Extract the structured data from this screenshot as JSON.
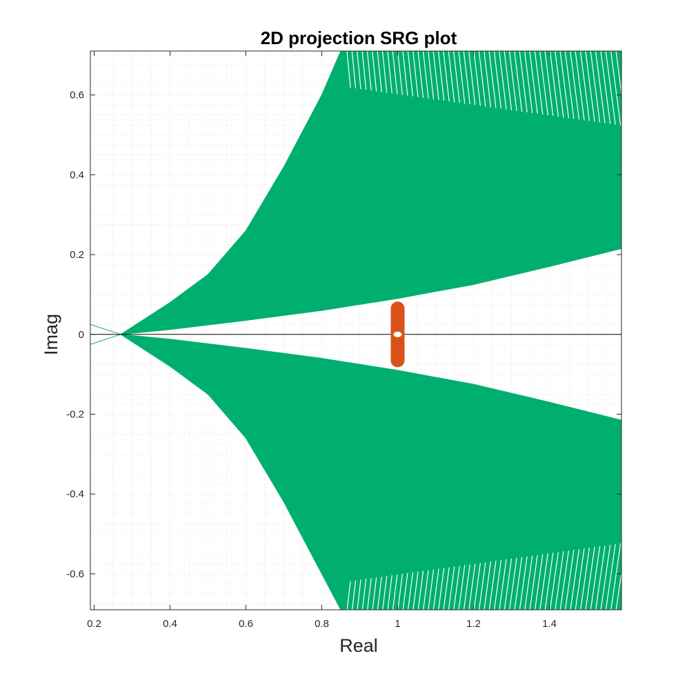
{
  "chart_data": {
    "type": "line",
    "title": "2D projection SRG plot",
    "xlabel": "Real",
    "ylabel": "Imag",
    "xlim": [
      0.19,
      1.59
    ],
    "ylim": [
      -0.69,
      0.71
    ],
    "x_ticks": [
      0.2,
      0.4,
      0.6,
      0.8,
      1,
      1.2,
      1.4
    ],
    "x_tick_labels": [
      "0.2",
      "0.4",
      "0.6",
      "0.8",
      "1",
      "1.2",
      "1.4"
    ],
    "y_ticks": [
      -0.6,
      -0.4,
      -0.2,
      0,
      0.2,
      0.4,
      0.6
    ],
    "y_tick_labels": [
      "-0.6",
      "-0.4",
      "-0.2",
      "0",
      "0.2",
      "0.4",
      "0.6"
    ],
    "grid": "minor-dotted",
    "series": [
      {
        "color": "#00af6f",
        "region": "upper-fan",
        "x_start": 0.19,
        "inner_boundary": {
          "x": [
            0.19,
            0.27,
            0.4,
            0.6,
            0.8,
            1.0,
            1.2,
            1.4,
            1.59
          ],
          "y": [
            0.025,
            0.0,
            0.012,
            0.035,
            0.06,
            0.09,
            0.125,
            0.17,
            0.215
          ]
        },
        "outer_boundary": {
          "x": [
            0.19,
            0.27,
            0.4,
            0.5,
            0.6,
            0.7,
            0.8,
            0.85
          ],
          "y": [
            0.025,
            0.0,
            0.08,
            0.15,
            0.26,
            0.42,
            0.6,
            0.71
          ]
        },
        "fan_end_x": 0.855,
        "fan_end_y": 0.71,
        "fan_right_edge_y": [
          0.215,
          0.71
        ]
      },
      {
        "color": "#00af6f",
        "region": "lower-fan",
        "x_start": 0.19,
        "inner_boundary": {
          "x": [
            0.19,
            0.27,
            0.4,
            0.6,
            0.8,
            1.0,
            1.2,
            1.4,
            1.59
          ],
          "y": [
            -0.025,
            0.0,
            -0.012,
            -0.035,
            -0.06,
            -0.09,
            -0.125,
            -0.17,
            -0.215
          ]
        },
        "outer_boundary": {
          "x": [
            0.19,
            0.27,
            0.4,
            0.5,
            0.6,
            0.7,
            0.8,
            0.85
          ],
          "y": [
            -0.025,
            0.0,
            -0.08,
            -0.15,
            -0.26,
            -0.42,
            -0.6,
            -0.69
          ]
        },
        "fan_end_x": 0.855,
        "fan_end_y": -0.69,
        "fan_right_edge_y": [
          -0.215,
          -0.69
        ]
      },
      {
        "color": "#d95319",
        "region": "eigenvalue-segment",
        "x": [
          1.0,
          1.0
        ],
        "y": [
          0.065,
          -0.065
        ],
        "marker_inner": {
          "x": 1.0,
          "y": 0.0
        }
      }
    ],
    "zero_line": {
      "y": 0,
      "color": "#000000"
    }
  }
}
